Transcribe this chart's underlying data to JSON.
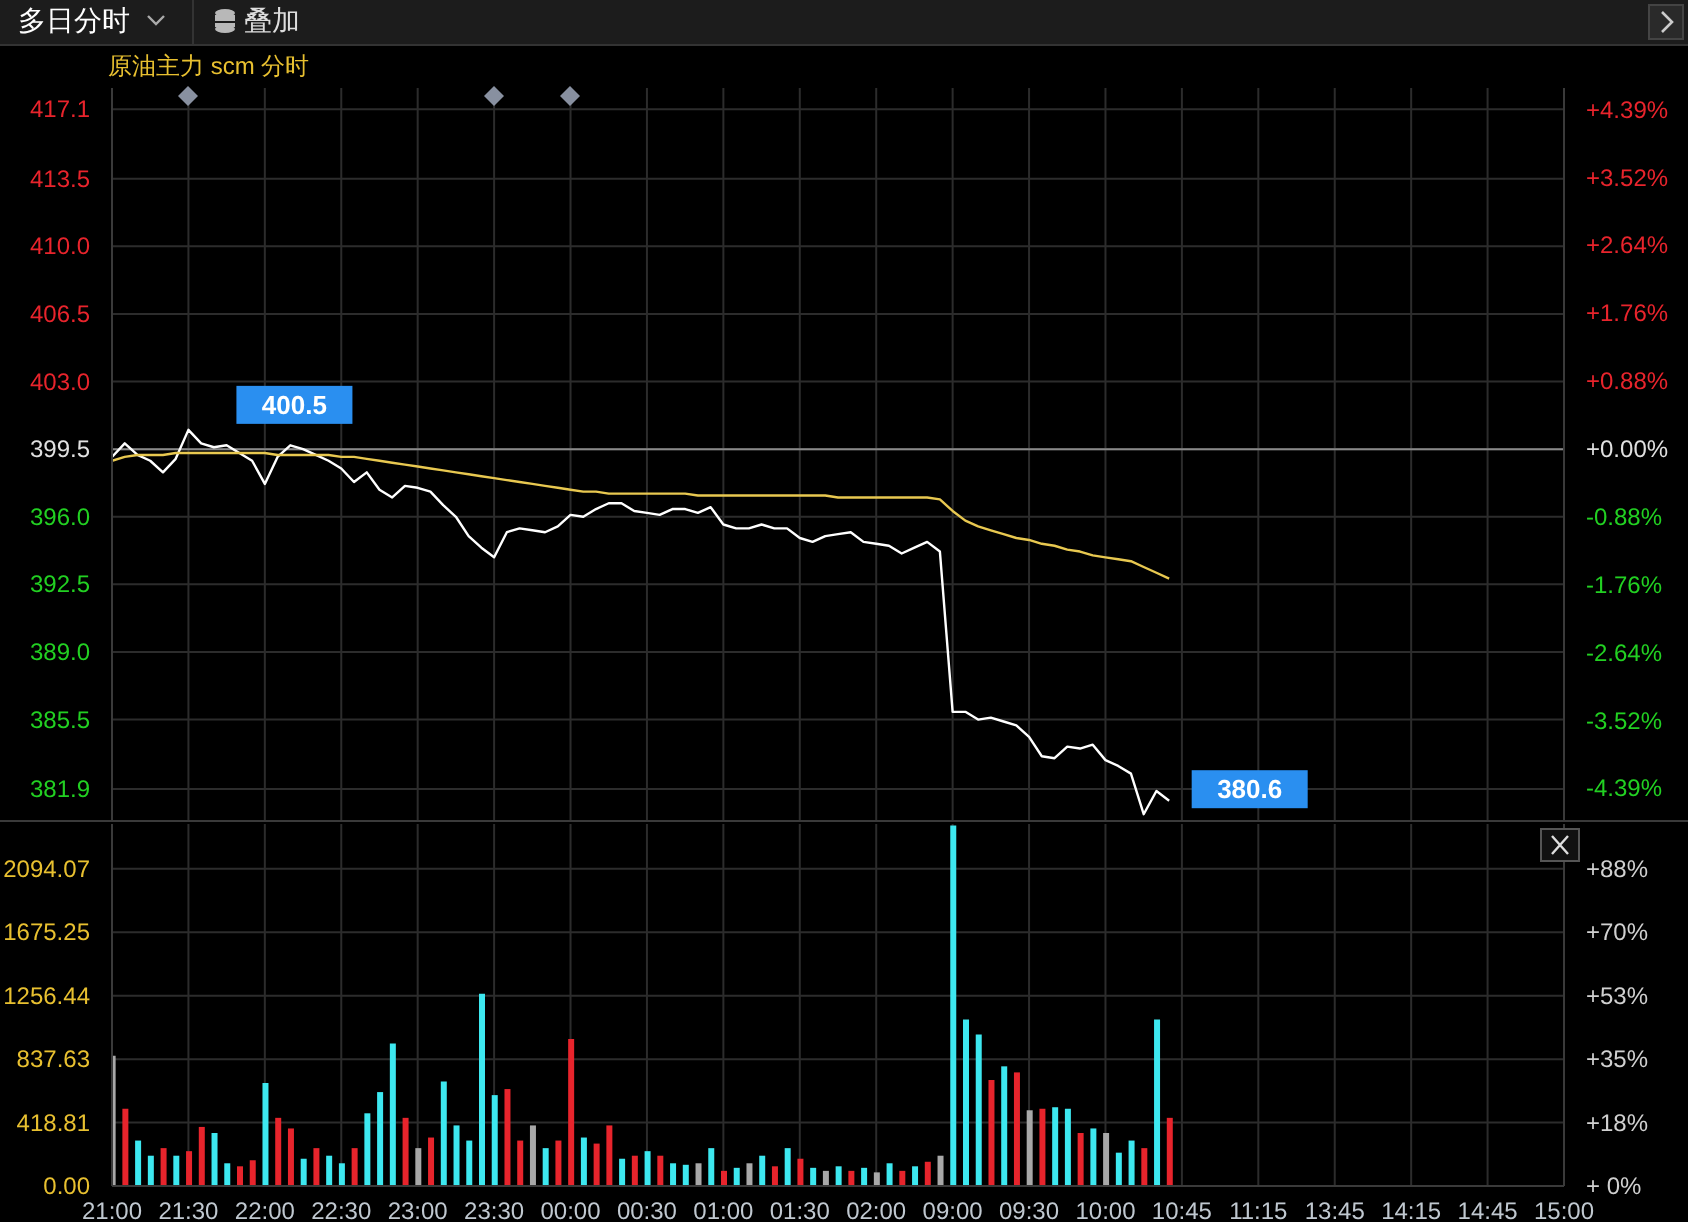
{
  "chart_data": [
    {
      "type": "line",
      "title": "原油主力 scm 分时",
      "annotations": [
        "多日分时",
        "叠加",
        {
          "text": "400.5",
          "x": "21:30",
          "y": 400.5
        },
        "380.6"
      ],
      "categories": [
        "21:00",
        null,
        null,
        null,
        null,
        null,
        "21:30",
        null,
        null,
        null,
        null,
        null,
        "22:00",
        null,
        null,
        null,
        null,
        null,
        "22:30",
        null,
        null,
        null,
        null,
        null,
        "23:00",
        null,
        null,
        null,
        null,
        null,
        "23:30",
        null,
        null,
        null,
        null,
        null,
        "00:00",
        null,
        null,
        null,
        null,
        null,
        "00:30",
        null,
        null,
        null,
        null,
        null,
        "01:00",
        null,
        null,
        null,
        null,
        null,
        "01:30",
        null,
        null,
        null,
        null,
        null,
        "02:00",
        null,
        null,
        null,
        null,
        null,
        "09:00",
        null,
        null,
        null,
        null,
        null,
        "09:30",
        null,
        null,
        null,
        null,
        null,
        "10:00",
        null,
        null,
        null,
        null,
        null,
        "10:45",
        null,
        null,
        null,
        null,
        null,
        "11:15",
        null,
        null,
        null,
        null,
        null,
        "13:45",
        null,
        null,
        null,
        null,
        null,
        "14:15",
        null,
        null,
        null,
        null,
        null,
        "14:45",
        null,
        null,
        null,
        null,
        null,
        "15:00"
      ],
      "series": [
        {
          "color": "#ffffff",
          "values": [
            399.1,
            399.8,
            399.2,
            398.9,
            398.3,
            399.0,
            400.5,
            399.8,
            399.6,
            399.7,
            399.3,
            398.9,
            397.7,
            399.1,
            399.7,
            399.5,
            399.2,
            398.9,
            398.5,
            397.8,
            398.3,
            397.4,
            397.0,
            397.6,
            397.5,
            397.3,
            396.6,
            396.0,
            395.0,
            394.4,
            393.9,
            395.2,
            395.4,
            395.3,
            395.2,
            395.5,
            396.1,
            396.0,
            396.4,
            396.7,
            396.7,
            396.3,
            396.2,
            396.1,
            396.4,
            396.4,
            396.2,
            396.5,
            395.6,
            395.4,
            395.4,
            395.6,
            395.4,
            395.4,
            394.9,
            394.7,
            395.0,
            395.1,
            395.2,
            394.7,
            394.6,
            394.5,
            394.1,
            394.4,
            394.7,
            394.2,
            385.9,
            385.9,
            385.5,
            385.6,
            385.4,
            385.2,
            384.6,
            383.6,
            383.5,
            384.1,
            384.0,
            384.2,
            383.4,
            383.1,
            382.7,
            380.6,
            381.8,
            381.3,
            null,
            null,
            null,
            null,
            null,
            null,
            null,
            null,
            null,
            null,
            null,
            null,
            null,
            null,
            null,
            null,
            null,
            null,
            null,
            null,
            null,
            null,
            null,
            null,
            null,
            null,
            null,
            null,
            null,
            null,
            null
          ]
        },
        {
          "color": "#e8c850",
          "values": [
            398.9,
            399.1,
            399.2,
            399.2,
            399.2,
            399.3,
            399.3,
            399.3,
            399.3,
            399.3,
            399.3,
            399.3,
            399.3,
            399.2,
            399.2,
            399.2,
            399.2,
            399.2,
            399.1,
            399.1,
            399.0,
            398.9,
            398.8,
            398.7,
            398.6,
            398.5,
            398.4,
            398.3,
            398.2,
            398.1,
            398.0,
            397.9,
            397.8,
            397.7,
            397.6,
            397.5,
            397.4,
            397.3,
            397.3,
            397.2,
            397.2,
            397.2,
            397.2,
            397.2,
            397.2,
            397.2,
            397.1,
            397.1,
            397.1,
            397.1,
            397.1,
            397.1,
            397.1,
            397.1,
            397.1,
            397.1,
            397.1,
            397.0,
            397.0,
            397.0,
            397.0,
            397.0,
            397.0,
            397.0,
            397.0,
            396.9,
            396.3,
            395.8,
            395.5,
            395.3,
            395.1,
            394.9,
            394.8,
            394.6,
            394.5,
            394.3,
            394.2,
            394.0,
            393.9,
            393.8,
            393.7,
            393.4,
            393.1,
            392.8,
            null,
            null,
            null,
            null,
            null,
            null,
            null,
            null,
            null,
            null,
            null,
            null,
            null,
            null,
            null,
            null,
            null,
            null,
            null,
            null,
            null,
            null,
            null,
            null,
            null,
            null,
            null,
            null,
            null,
            null,
            null
          ]
        }
      ],
      "ylim": [
        380.3,
        418.2
      ],
      "yticks": [
        {
          "value": 417.1,
          "label": "417.1"
        },
        {
          "value": 413.5,
          "label": "413.5"
        },
        {
          "value": 410.0,
          "label": "410.0"
        },
        {
          "value": 406.5,
          "label": "406.5"
        },
        {
          "value": 403.0,
          "label": "403.0"
        },
        {
          "value": 399.5,
          "label": "399.5"
        },
        {
          "value": 396.0,
          "label": "396.0"
        },
        {
          "value": 392.5,
          "label": "392.5"
        },
        {
          "value": 389.0,
          "label": "389.0"
        },
        {
          "value": 385.5,
          "label": "385.5"
        },
        {
          "value": 381.9,
          "label": "381.9"
        }
      ],
      "y2lim": [
        -4.806,
        4.681
      ],
      "y2ticks": [
        {
          "value": 4.39,
          "label": "+4.39%"
        },
        {
          "value": 3.52,
          "label": "+3.52%"
        },
        {
          "value": 2.64,
          "label": "+2.64%"
        },
        {
          "value": 1.76,
          "label": "+1.76%"
        },
        {
          "value": 0.88,
          "label": "+0.88%"
        },
        {
          "value": 0,
          "label": "+0.00%"
        },
        {
          "value": -0.88,
          "label": "-0.88%"
        },
        {
          "value": -1.76,
          "label": "-1.76%"
        },
        {
          "value": -2.64,
          "label": "-2.64%"
        },
        {
          "value": -3.52,
          "label": "-3.52%"
        },
        {
          "value": -4.39,
          "label": "-4.39%"
        }
      ],
      "ref_lines": [
        {
          "axis": "y",
          "value": 399.5,
          "color": "#8a8a8a"
        }
      ],
      "grid": true,
      "tick_labels": "y"
    },
    {
      "type": "bar",
      "categories": [
        "21:00",
        null,
        null,
        null,
        null,
        null,
        "21:30",
        null,
        null,
        null,
        null,
        null,
        "22:00",
        null,
        null,
        null,
        null,
        null,
        "22:30",
        null,
        null,
        null,
        null,
        null,
        "23:00",
        null,
        null,
        null,
        null,
        null,
        "23:30",
        null,
        null,
        null,
        null,
        null,
        "00:00",
        null,
        null,
        null,
        null,
        null,
        "00:30",
        null,
        null,
        null,
        null,
        null,
        "01:00",
        null,
        null,
        null,
        null,
        null,
        "01:30",
        null,
        null,
        null,
        null,
        null,
        "02:00",
        null,
        null,
        null,
        null,
        null,
        "09:00",
        null,
        null,
        null,
        null,
        null,
        "09:30",
        null,
        null,
        null,
        null,
        null,
        "10:00",
        null,
        null,
        null,
        null,
        null,
        "10:45",
        null,
        null,
        null,
        null,
        null,
        "11:15",
        null,
        null,
        null,
        null,
        null,
        "13:45",
        null,
        null,
        null,
        null,
        null,
        "14:15",
        null,
        null,
        null,
        null,
        null,
        "14:45",
        null,
        null,
        null,
        null,
        null,
        "15:00"
      ],
      "series": [
        {
          "values": [
            860,
            510,
            300,
            200,
            250,
            200,
            230,
            390,
            350,
            150,
            130,
            170,
            680,
            450,
            380,
            180,
            250,
            200,
            150,
            250,
            480,
            620,
            940,
            450,
            250,
            320,
            690,
            400,
            300,
            1270,
            600,
            640,
            300,
            400,
            250,
            300,
            970,
            320,
            280,
            400,
            180,
            200,
            230,
            200,
            150,
            140,
            150,
            250,
            100,
            120,
            150,
            200,
            130,
            250,
            180,
            120,
            100,
            130,
            100,
            120,
            90,
            150,
            100,
            130,
            160,
            200,
            2380,
            1100,
            1000,
            700,
            790,
            750,
            500,
            510,
            520,
            510,
            350,
            380,
            350,
            220,
            300,
            250,
            1100,
            450,
            null,
            null,
            null,
            null,
            null,
            null,
            null,
            null,
            null,
            null,
            null,
            null,
            null,
            null,
            null,
            null,
            null,
            null,
            null,
            null,
            null,
            null,
            null,
            null,
            null,
            null,
            null,
            null,
            null,
            null,
            null
          ],
          "colors": [
            "#a8a8a8",
            "#e8242c",
            "#3de8f0",
            "#3de8f0",
            "#e8242c",
            "#3de8f0",
            "#e8242c",
            "#e8242c",
            "#3de8f0",
            "#3de8f0",
            "#e8242c",
            "#e8242c",
            "#3de8f0",
            "#e8242c",
            "#e8242c",
            "#3de8f0",
            "#e8242c",
            "#3de8f0",
            "#3de8f0",
            "#e8242c",
            "#3de8f0",
            "#3de8f0",
            "#3de8f0",
            "#e8242c",
            "#a8a8a8",
            "#e8242c",
            "#3de8f0",
            "#3de8f0",
            "#3de8f0",
            "#3de8f0",
            "#3de8f0",
            "#e8242c",
            "#e8242c",
            "#a8a8a8",
            "#3de8f0",
            "#e8242c",
            "#e8242c",
            "#3de8f0",
            "#e8242c",
            "#e8242c",
            "#3de8f0",
            "#e8242c",
            "#3de8f0",
            "#e8242c",
            "#3de8f0",
            "#3de8f0",
            "#a8a8a8",
            "#3de8f0",
            "#e8242c",
            "#3de8f0",
            "#a8a8a8",
            "#3de8f0",
            "#e8242c",
            "#3de8f0",
            "#e8242c",
            "#3de8f0",
            "#a8a8a8",
            "#3de8f0",
            "#e8242c",
            "#3de8f0",
            "#a8a8a8",
            "#3de8f0",
            "#e8242c",
            "#3de8f0",
            "#e8242c",
            "#a8a8a8",
            "#3de8f0",
            "#3de8f0",
            "#3de8f0",
            "#e8242c",
            "#3de8f0",
            "#e8242c",
            "#a8a8a8",
            "#e8242c",
            "#3de8f0",
            "#3de8f0",
            "#e8242c",
            "#3de8f0",
            "#a8a8a8",
            "#3de8f0",
            "#3de8f0",
            "#e8242c",
            "#3de8f0",
            "#e8242c",
            null,
            null,
            null,
            null,
            null,
            null,
            null,
            null,
            null,
            null,
            null,
            null,
            null,
            null,
            null,
            null,
            null,
            null,
            null,
            null,
            null,
            null,
            null,
            null,
            null,
            null,
            null,
            null,
            null,
            null,
            null
          ]
        }
      ],
      "ylim": [
        0,
        2390
      ],
      "yticks": [
        {
          "value": 0,
          "label": "0.00"
        },
        418.81,
        837.63,
        1256.44,
        1675.25,
        2094.07
      ],
      "y2lim": [
        0,
        100.4
      ],
      "y2ticks": [
        {
          "value": 0,
          "label": "+ 0%"
        },
        {
          "value": 17.6,
          "label": "+18%"
        },
        {
          "value": 35.2,
          "label": "+35%"
        },
        {
          "value": 52.8,
          "label": "+53%"
        },
        {
          "value": 70.4,
          "label": "+70%"
        },
        {
          "value": 88,
          "label": "+88%"
        }
      ],
      "grid": true
    }
  ]
}
